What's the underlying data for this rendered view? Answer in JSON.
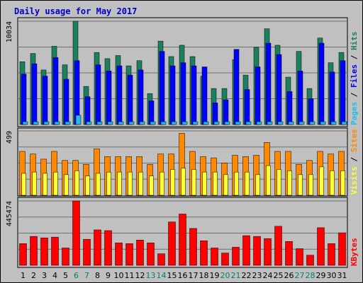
{
  "chart_data": {
    "title": "Daily usage for May 2017",
    "type": "bar",
    "categories": [
      "1",
      "2",
      "3",
      "4",
      "5",
      "6",
      "7",
      "8",
      "9",
      "10",
      "11",
      "12",
      "13",
      "14",
      "15",
      "16",
      "17",
      "18",
      "19",
      "20",
      "21",
      "22",
      "23",
      "24",
      "25",
      "26",
      "27",
      "28",
      "29",
      "30",
      "31"
    ],
    "weekend_days": [
      6,
      7,
      13,
      14,
      20,
      21,
      27,
      28
    ],
    "colors": {
      "hits": "#1a8060",
      "files": "#0000ff",
      "pages": "#22bbee",
      "visits": "#ffff33",
      "sites": "#ff8800",
      "kbytes": "#ff0000",
      "weekday_label": "#000000",
      "weekend_label": "#00806b"
    },
    "panels": [
      {
        "id": "hits",
        "ytick_label": "10034",
        "ymax": 10034,
        "legend": [
          {
            "text": "Hits",
            "color": "#1a8060"
          },
          {
            "text": "Files",
            "color": "#0000ff"
          },
          {
            "text": "Pages",
            "color": "#22bbee"
          }
        ],
        "series": [
          {
            "name": "Hits",
            "values": [
              6100,
              6900,
              5300,
              7600,
              5800,
              10034,
              3700,
              7000,
              6400,
              6700,
              5700,
              6200,
              3000,
              8100,
              6600,
              7700,
              6600,
              4700,
              3500,
              3500,
              6300,
              4800,
              7500,
              9300,
              7700,
              4600,
              7100,
              3500,
              8400,
              6000,
              7000
            ]
          },
          {
            "name": "Files",
            "values": [
              4900,
              5900,
              4700,
              6500,
              4400,
              6200,
              2700,
              5800,
              5200,
              5700,
              4800,
              5300,
              2300,
              7100,
              5700,
              6000,
              5700,
              5600,
              2100,
              2400,
              7300,
              3400,
              5600,
              7900,
              6800,
              3200,
              5200,
              2500,
              7900,
              5100,
              6200
            ]
          },
          {
            "name": "Pages",
            "values": [
              270,
              270,
              270,
              270,
              270,
              900,
              270,
              270,
              270,
              270,
              270,
              270,
              270,
              270,
              270,
              270,
              270,
              270,
              270,
              270,
              270,
              270,
              270,
              270,
              270,
              270,
              270,
              270,
              270,
              270,
              270
            ]
          }
        ]
      },
      {
        "id": "sites",
        "ytick_label": "499",
        "ymax": 499,
        "legend": [
          {
            "text": "Sites",
            "color": "#ff8800"
          },
          {
            "text": "/",
            "color": "#000000"
          },
          {
            "text": "Visits",
            "color": "#ffff33"
          }
        ],
        "series": [
          {
            "name": "Sites",
            "values": [
              340,
              320,
              280,
              340,
              270,
              270,
              240,
              360,
              300,
              300,
              300,
              300,
              240,
              320,
              320,
              480,
              340,
              300,
              290,
              250,
              310,
              300,
              310,
              410,
              340,
              340,
              240,
              270,
              340,
              320,
              340
            ]
          },
          {
            "name": "Visits",
            "values": [
              170,
              180,
              170,
              180,
              160,
              190,
              150,
              170,
              180,
              180,
              180,
              180,
              150,
              180,
              200,
              210,
              200,
              180,
              180,
              160,
              180,
              180,
              160,
              230,
              200,
              190,
              160,
              160,
              220,
              190,
              190
            ]
          }
        ]
      },
      {
        "id": "kbytes",
        "ytick_label": "445474",
        "ymax": 445474,
        "legend": [
          {
            "text": "KBytes",
            "color": "#ff0000"
          }
        ],
        "series": [
          {
            "name": "KBytes",
            "values": [
              150000,
              200000,
              190000,
              195000,
              120000,
              445474,
              180000,
              245000,
              240000,
              155000,
              150000,
              175000,
              155000,
              80000,
              300000,
              355000,
              255000,
              170000,
              120000,
              85000,
              125000,
              205000,
              200000,
              185000,
              270000,
              165000,
              115000,
              70000,
              260000,
              150000,
              225000
            ]
          }
        ]
      }
    ]
  }
}
